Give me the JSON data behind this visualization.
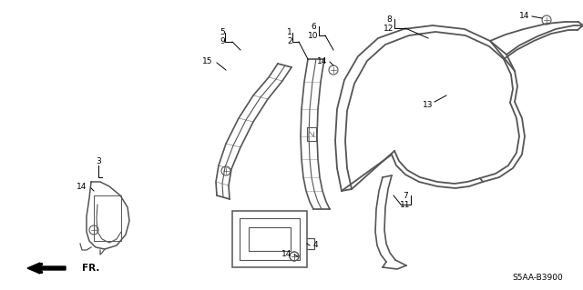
{
  "bg": "#ffffff",
  "lc": "#555555",
  "tc": "#000000",
  "diagram_id": "S5AA-B3900",
  "figsize": [
    6.4,
    3.19
  ],
  "dpi": 100
}
